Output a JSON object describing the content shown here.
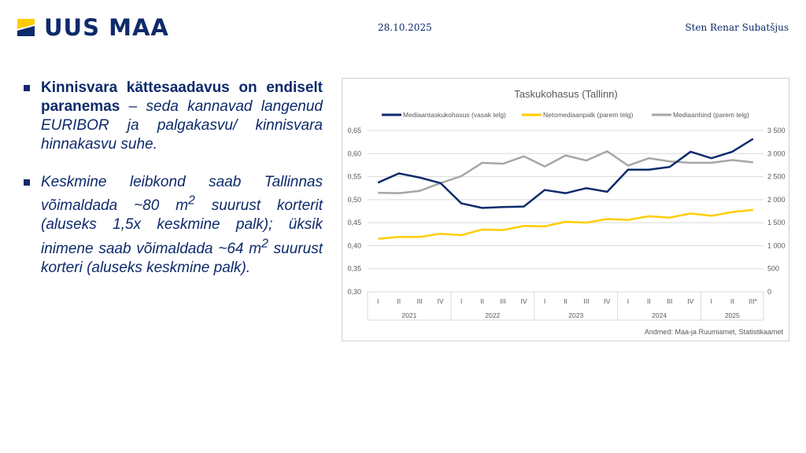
{
  "header": {
    "logo_text": "UUS MAA",
    "date": "28.10.2025",
    "author": "Sten Renar Subatšjus"
  },
  "bullets": [
    {
      "bold": "Kinnisvara kättesaadavus on endiselt paranemas",
      "italic": " – seda kannavad langenud EURIBOR ja palgakasvu/ kinnisvara hinnakasvu suhe."
    },
    {
      "part1": "Keskmine leibkond saab Tallinnas võimaldada ~80 m",
      "sup1": "2",
      "part2": " suurust korterit (aluseks 1,5x keskmine palk); üksik inimene saab võimaldada ~64 m",
      "sup2": "2",
      "part3": " suurust korteri (aluseks keskmine palk)."
    }
  ],
  "colors": {
    "brand": "#0d2a6b",
    "yellow": "#ffcc00",
    "gray": "#a6a6a6"
  },
  "chart_data": {
    "type": "line",
    "title": "Taskukohasus (Tallinn)",
    "source": "Andmed: Maa-ja Ruumiamet, Statistikaamet",
    "categories": [
      "I",
      "II",
      "III",
      "IV",
      "I",
      "II",
      "III",
      "IV",
      "I",
      "II",
      "III",
      "IV",
      "I",
      "II",
      "III",
      "IV",
      "I",
      "II",
      "III*"
    ],
    "years": [
      "2021",
      "2022",
      "2023",
      "2024",
      "2025"
    ],
    "left_axis": {
      "ylim": [
        0.3,
        0.65
      ],
      "ticks": [
        "0,30",
        "0,35",
        "0,40",
        "0,45",
        "0,50",
        "0,55",
        "0,60",
        "0,65"
      ]
    },
    "right_axis": {
      "ylim": [
        0,
        3500
      ],
      "ticks": [
        "0",
        "500",
        "1 000",
        "1 500",
        "2 000",
        "2 500",
        "3 000",
        "3 500"
      ]
    },
    "series": [
      {
        "name": "Mediaantaskukohasus (vasak telg)",
        "axis": "left",
        "color": "#0d2a6b",
        "values": [
          0.537,
          0.557,
          0.548,
          0.536,
          0.492,
          0.482,
          0.484,
          0.485,
          0.521,
          0.514,
          0.525,
          0.517,
          0.565,
          0.565,
          0.571,
          0.604,
          0.59,
          0.604,
          0.632
        ]
      },
      {
        "name": "Netomediaanpalk (parem telg)",
        "axis": "right",
        "color": "#ffcc00",
        "values": [
          1150,
          1190,
          1190,
          1260,
          1230,
          1350,
          1340,
          1430,
          1420,
          1520,
          1500,
          1580,
          1560,
          1640,
          1610,
          1700,
          1650,
          1730,
          1780
        ]
      },
      {
        "name": "Mediaanhind (parem telg)",
        "axis": "right",
        "color": "#a6a6a6",
        "values": [
          2150,
          2140,
          2190,
          2360,
          2510,
          2800,
          2780,
          2940,
          2720,
          2960,
          2850,
          3050,
          2740,
          2900,
          2830,
          2800,
          2800,
          2860,
          2810
        ]
      }
    ]
  }
}
